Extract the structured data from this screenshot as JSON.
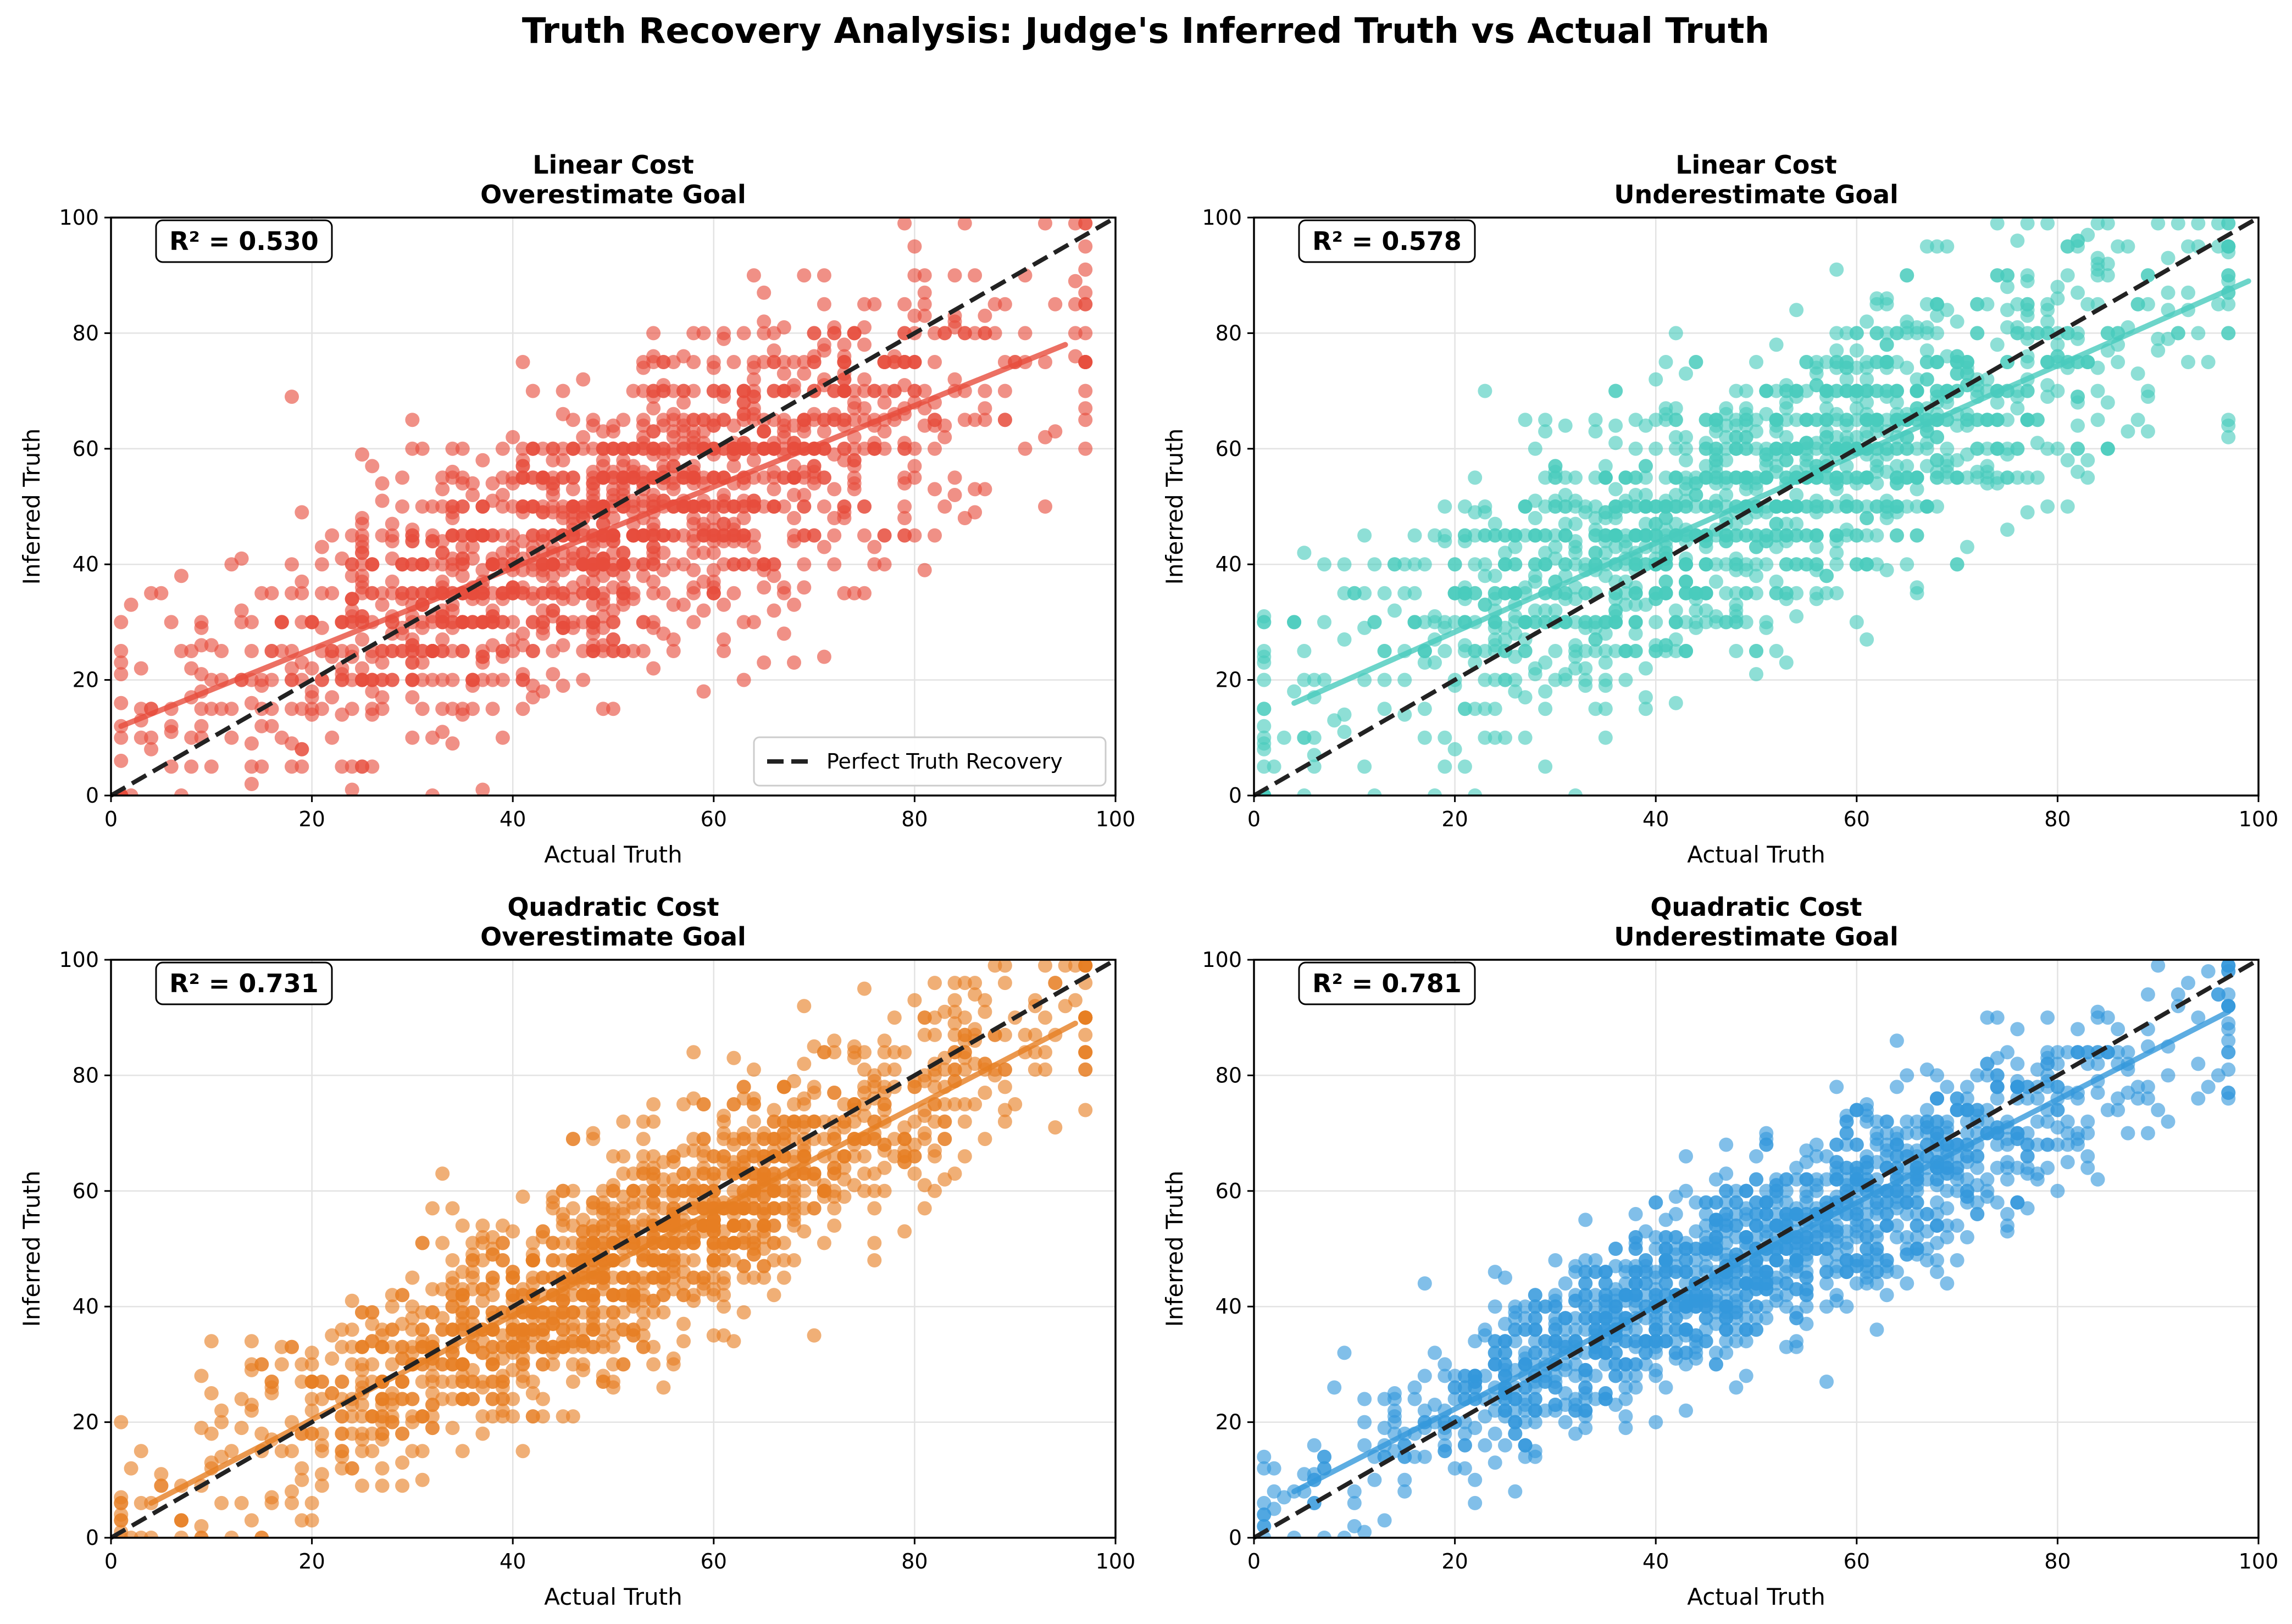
{
  "figure": {
    "title": "Truth Recovery Analysis: Judge's Inferred Truth vs Actual Truth"
  },
  "colors": {
    "reference_line": "#222222",
    "grid": "#e3e3e3",
    "axis": "#000000"
  },
  "chart_data": [
    {
      "type": "scatter",
      "title_line1": "Linear Cost",
      "title_line2": "Overestimate Goal",
      "xlabel": "Actual Truth",
      "ylabel": "Inferred Truth",
      "xlim": [
        0,
        100
      ],
      "ylim": [
        0,
        100
      ],
      "xticks": [
        0,
        20,
        40,
        60,
        80,
        100
      ],
      "yticks": [
        0,
        20,
        40,
        60,
        80,
        100
      ],
      "grid": true,
      "color": "#e74c3c",
      "r2_label": "R² = 0.530",
      "legend": {
        "placement": "lower-right",
        "label": "Perfect Truth Recovery"
      },
      "reference_line": {
        "label": "Perfect Truth Recovery",
        "x": [
          0,
          100
        ],
        "y": [
          0,
          100
        ]
      },
      "fit_line": {
        "x": [
          1,
          95
        ],
        "y": [
          12,
          78
        ]
      },
      "sample": {
        "n": 1500,
        "x_center": 50,
        "x_sd": 20,
        "slope": 0.7,
        "intercept": 11.3,
        "noise_sd": 12,
        "step": 5,
        "seed": 11
      }
    },
    {
      "type": "scatter",
      "title_line1": "Linear Cost",
      "title_line2": "Underestimate Goal",
      "xlabel": "Actual Truth",
      "ylabel": "Inferred Truth",
      "xlim": [
        0,
        100
      ],
      "ylim": [
        0,
        100
      ],
      "xticks": [
        0,
        20,
        40,
        60,
        80,
        100
      ],
      "yticks": [
        0,
        20,
        40,
        60,
        80,
        100
      ],
      "grid": true,
      "color": "#48cbbd",
      "r2_label": "R² = 0.578",
      "reference_line": {
        "x": [
          0,
          100
        ],
        "y": [
          0,
          100
        ]
      },
      "fit_line": {
        "x": [
          4,
          99
        ],
        "y": [
          16,
          89
        ]
      },
      "sample": {
        "n": 1500,
        "x_center": 50,
        "x_sd": 20,
        "slope": 0.77,
        "intercept": 13,
        "noise_sd": 12,
        "step": 5,
        "seed": 23
      }
    },
    {
      "type": "scatter",
      "title_line1": "Quadratic Cost",
      "title_line2": "Overestimate Goal",
      "xlabel": "Actual Truth",
      "ylabel": "Inferred Truth",
      "xlim": [
        0,
        100
      ],
      "ylim": [
        0,
        100
      ],
      "xticks": [
        0,
        20,
        40,
        60,
        80,
        100
      ],
      "yticks": [
        0,
        20,
        40,
        60,
        80,
        100
      ],
      "grid": true,
      "color": "#e67e22",
      "r2_label": "R² = 0.731",
      "reference_line": {
        "x": [
          0,
          100
        ],
        "y": [
          0,
          100
        ]
      },
      "fit_line": {
        "x": [
          4,
          96
        ],
        "y": [
          6,
          89
        ]
      },
      "sample": {
        "n": 1500,
        "x_center": 52,
        "x_sd": 20,
        "slope": 0.9,
        "intercept": 2.5,
        "noise_sd": 9,
        "step": 3,
        "seed": 37
      }
    },
    {
      "type": "scatter",
      "title_line1": "Quadratic Cost",
      "title_line2": "Underestimate Goal",
      "xlabel": "Actual Truth",
      "ylabel": "Inferred Truth",
      "xlim": [
        0,
        100
      ],
      "ylim": [
        0,
        100
      ],
      "xticks": [
        0,
        20,
        40,
        60,
        80,
        100
      ],
      "yticks": [
        0,
        20,
        40,
        60,
        80,
        100
      ],
      "grid": true,
      "color": "#3498db",
      "r2_label": "R² = 0.781",
      "reference_line": {
        "x": [
          0,
          100
        ],
        "y": [
          0,
          100
        ]
      },
      "fit_line": {
        "x": [
          4,
          97
        ],
        "y": [
          8,
          91
        ]
      },
      "sample": {
        "n": 1500,
        "x_center": 50,
        "x_sd": 20,
        "slope": 0.89,
        "intercept": 4.5,
        "noise_sd": 8,
        "step": 2,
        "seed": 53
      }
    }
  ]
}
